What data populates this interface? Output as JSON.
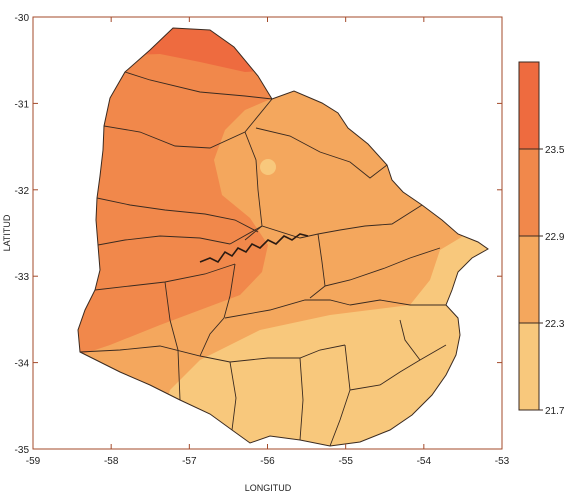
{
  "map": {
    "xlabel": "LONGITUD",
    "ylabel": "LATITUD",
    "x_ticks": [
      "-59",
      "-58",
      "-57",
      "-56",
      "-55",
      "-54",
      "-53"
    ],
    "y_ticks": [
      "-30",
      "-31",
      "-32",
      "-33",
      "-34",
      "-35"
    ],
    "x_range": [
      -59,
      -53
    ],
    "y_range": [
      -35,
      -30
    ],
    "region": "Uruguay",
    "colors": {
      "frame": "#a34a2a",
      "border": "#3a2a20"
    }
  },
  "legend": {
    "labels": [
      "23.5",
      "22.9",
      "22.3",
      "21.7"
    ],
    "classes": [
      {
        "range": "> 23.5",
        "color": "#ee6b3f"
      },
      {
        "range": "22.9 – 23.5",
        "color": "#f1884b"
      },
      {
        "range": "22.3 – 22.9",
        "color": "#f4a75d"
      },
      {
        "range": "< 22.3",
        "color": "#f8c87c"
      }
    ]
  }
}
